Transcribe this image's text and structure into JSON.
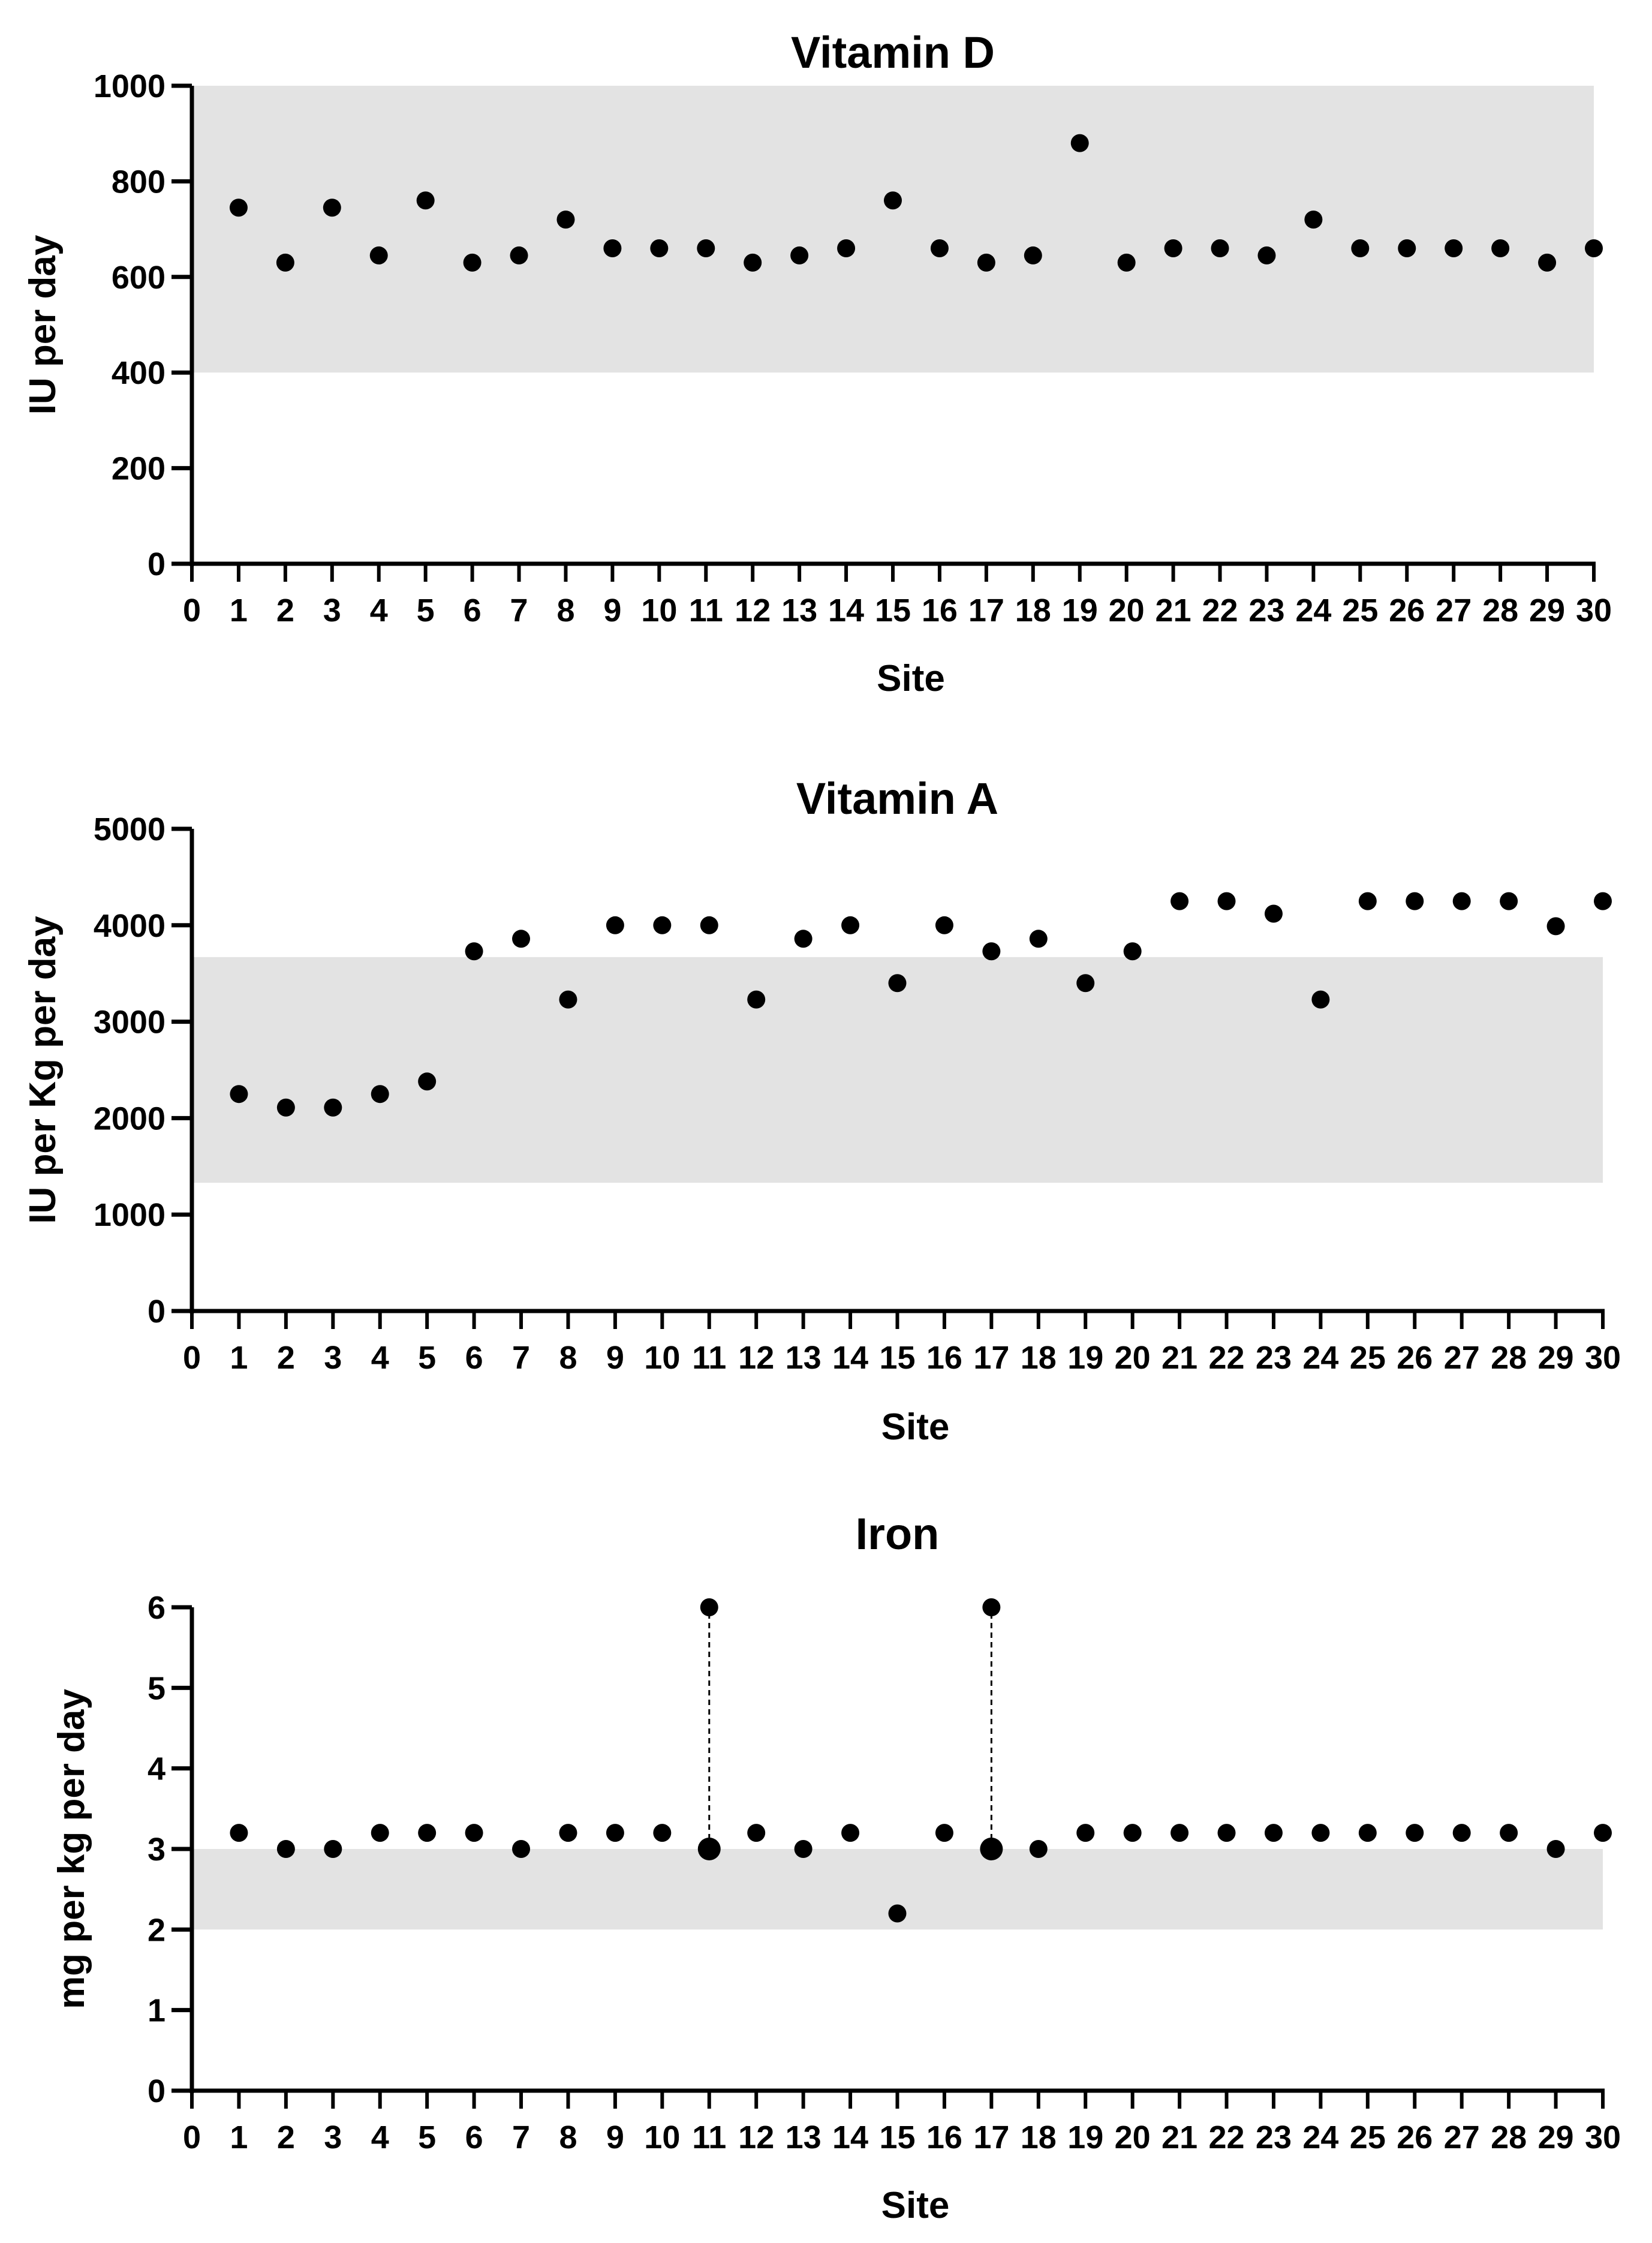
{
  "chart_data": [
    {
      "type": "scatter",
      "title": "Vitamin D",
      "xlabel": "Site",
      "ylabel": "IU per day",
      "xlim": [
        0,
        30
      ],
      "ylim": [
        0,
        1000
      ],
      "xticks": [
        0,
        1,
        2,
        3,
        4,
        5,
        6,
        7,
        8,
        9,
        10,
        11,
        12,
        13,
        14,
        15,
        16,
        17,
        18,
        19,
        20,
        21,
        22,
        23,
        24,
        25,
        26,
        27,
        28,
        29,
        30
      ],
      "yticks": [
        0,
        200,
        400,
        600,
        800,
        1000
      ],
      "reference_band": {
        "from": 400,
        "to": 1000,
        "color": "#e3e3e3"
      },
      "grid": false,
      "series": [
        {
          "name": "Vitamin D",
          "color": "#000000",
          "x": [
            1,
            2,
            3,
            4,
            5,
            6,
            7,
            8,
            9,
            10,
            11,
            12,
            13,
            14,
            15,
            16,
            17,
            18,
            19,
            20,
            21,
            22,
            23,
            24,
            25,
            26,
            27,
            28,
            29,
            30
          ],
          "y": [
            745,
            630,
            745,
            645,
            760,
            630,
            645,
            720,
            660,
            660,
            660,
            630,
            645,
            660,
            760,
            660,
            630,
            645,
            880,
            630,
            660,
            660,
            645,
            720,
            660,
            660,
            660,
            660,
            630,
            660
          ]
        }
      ],
      "ranges": []
    },
    {
      "type": "scatter",
      "title": "Vitamin A",
      "xlabel": "Site",
      "ylabel": "IU per Kg per day",
      "xlim": [
        0,
        30
      ],
      "ylim": [
        0,
        5000
      ],
      "xticks": [
        0,
        1,
        2,
        3,
        4,
        5,
        6,
        7,
        8,
        9,
        10,
        11,
        12,
        13,
        14,
        15,
        16,
        17,
        18,
        19,
        20,
        21,
        22,
        23,
        24,
        25,
        26,
        27,
        28,
        29,
        30
      ],
      "yticks": [
        0,
        1000,
        2000,
        3000,
        4000,
        5000
      ],
      "reference_band": {
        "from": 1330,
        "to": 3670,
        "color": "#e3e3e3"
      },
      "grid": false,
      "series": [
        {
          "name": "Vitamin A",
          "color": "#000000",
          "x": [
            1,
            2,
            3,
            4,
            5,
            6,
            7,
            8,
            9,
            10,
            11,
            12,
            13,
            14,
            15,
            16,
            17,
            18,
            19,
            20,
            21,
            22,
            23,
            24,
            25,
            26,
            27,
            28,
            29,
            30
          ],
          "y": [
            2250,
            2110,
            2110,
            2250,
            2380,
            3730,
            3860,
            3230,
            4000,
            4000,
            4000,
            3230,
            3860,
            4000,
            3400,
            4000,
            3730,
            3860,
            3400,
            3730,
            4250,
            4250,
            4120,
            3230,
            4250,
            4250,
            4250,
            4250,
            3990,
            4250
          ]
        }
      ],
      "ranges": []
    },
    {
      "type": "scatter",
      "title": "Iron",
      "xlabel": "Site",
      "ylabel": "mg per kg per day",
      "xlim": [
        0,
        30
      ],
      "ylim": [
        0,
        6
      ],
      "xticks": [
        0,
        1,
        2,
        3,
        4,
        5,
        6,
        7,
        8,
        9,
        10,
        11,
        12,
        13,
        14,
        15,
        16,
        17,
        18,
        19,
        20,
        21,
        22,
        23,
        24,
        25,
        26,
        27,
        28,
        29,
        30
      ],
      "yticks": [
        0,
        1,
        2,
        3,
        4,
        5,
        6
      ],
      "reference_band": {
        "from": 2,
        "to": 3,
        "color": "#e3e3e3"
      },
      "grid": false,
      "series": [
        {
          "name": "Iron",
          "color": "#000000",
          "x": [
            1,
            2,
            3,
            4,
            5,
            6,
            7,
            8,
            9,
            10,
            11,
            11,
            12,
            13,
            14,
            15,
            16,
            17,
            17,
            18,
            19,
            20,
            21,
            22,
            23,
            24,
            25,
            26,
            27,
            28,
            29,
            30
          ],
          "y": [
            3.2,
            3.0,
            3.0,
            3.2,
            3.2,
            3.2,
            3.0,
            3.2,
            3.2,
            3.2,
            3.0,
            6.0,
            3.2,
            3.0,
            3.2,
            2.2,
            3.2,
            3.0,
            6.0,
            3.0,
            3.2,
            3.2,
            3.2,
            3.2,
            3.2,
            3.2,
            3.2,
            3.2,
            3.2,
            3.2,
            3.0,
            3.2
          ]
        }
      ],
      "ranges": [
        {
          "x": 11,
          "from": 3.0,
          "to": 6.0,
          "style": "dashed"
        },
        {
          "x": 17,
          "from": 3.0,
          "to": 6.0,
          "style": "dashed"
        }
      ]
    }
  ]
}
